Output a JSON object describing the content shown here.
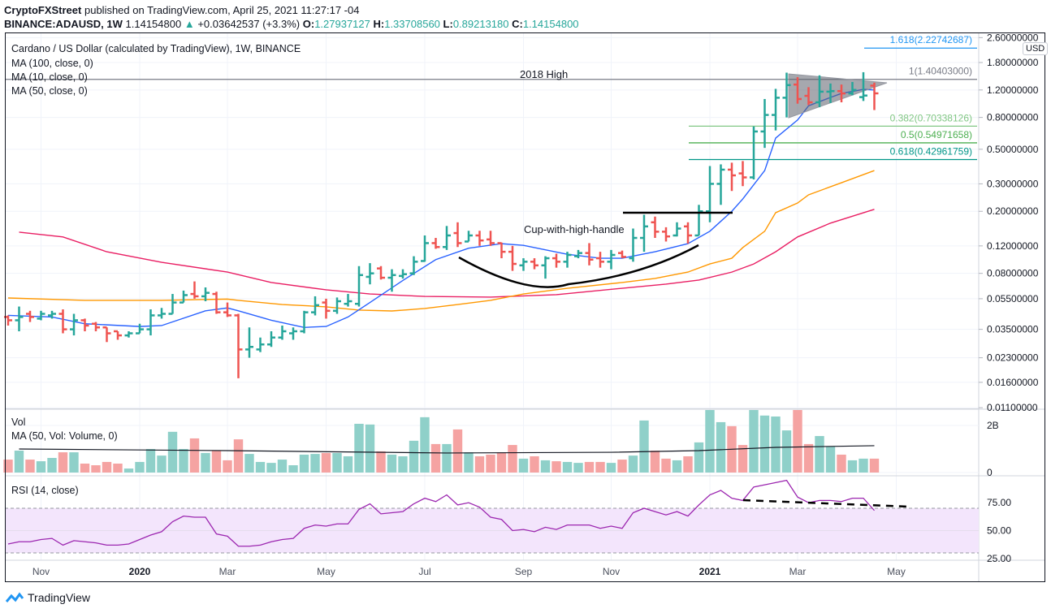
{
  "header": {
    "publisher": "CryptoFXStreet",
    "published_text": "published on TradingView.com, April 25, 2021 11:27:17 -04",
    "symbol": "BINANCE:ADAUSD, 1W",
    "last": "1.14154800",
    "change": "+0.03642537 (+3.3%)",
    "o_label": "O:",
    "o": "1.27937127",
    "h_label": "H:",
    "h": "1.33708560",
    "l_label": "L:",
    "l": "0.89213180",
    "c_label": "C:",
    "c": "1.14154800"
  },
  "legend": {
    "title": "Cardano / US Dollar (calculated by TradingView), 1W, BINANCE",
    "ma100": "MA (100, close, 0)",
    "ma10": "MA (10, close, 0)",
    "ma50": "MA (50, close, 0)",
    "vol": "Vol",
    "vol_ma": "MA (50, Vol: Volume, 0)",
    "rsi": "RSI (14, close)"
  },
  "currency": "USD",
  "annotations": {
    "high_2018": "2018 High",
    "cup": "Cup-with-high-handle"
  },
  "fib_levels": [
    {
      "label": "1.618(2.22742687)",
      "value": 2.22742687,
      "color": "#2196f3"
    },
    {
      "label": "1(1.40403000)",
      "value": 1.40403,
      "color": "#787b86"
    },
    {
      "label": "0.382(0.70338126)",
      "value": 0.70338126,
      "color": "#81c784"
    },
    {
      "label": "0.5(0.54971658)",
      "value": 0.54971658,
      "color": "#4caf50"
    },
    {
      "label": "0.618(0.42961759)",
      "value": 0.42961759,
      "color": "#009688"
    }
  ],
  "branding": "TradingView",
  "colors": {
    "up": "#26a69a",
    "down": "#ef5350",
    "ma10": "#2962ff",
    "ma50": "#ff9800",
    "ma100": "#e91e63",
    "rsi": "#9c27b0",
    "rsi_band": "#f3e5fc"
  },
  "chart_data": {
    "type": "ohlc-bar",
    "price_scale": "log",
    "grid": true,
    "price_ticks": [
      "2.60000000",
      "1.80000000",
      "1.20000000",
      "0.80000000",
      "0.50000000",
      "0.30000000",
      "0.20000000",
      "0.12000000",
      "0.08000000",
      "0.05500000",
      "0.03500000",
      "0.02300000",
      "0.01600000",
      "0.01100000"
    ],
    "time_ticks": [
      {
        "label": "Nov",
        "date": "2019-11-04"
      },
      {
        "label": "2020",
        "date": "2020-01-06",
        "year": true
      },
      {
        "label": "Mar",
        "date": "2020-03-02"
      },
      {
        "label": "May",
        "date": "2020-05-04"
      },
      {
        "label": "Jul",
        "date": "2020-07-06"
      },
      {
        "label": "Sep",
        "date": "2020-09-07"
      },
      {
        "label": "Nov",
        "date": "2020-11-02"
      },
      {
        "label": "2021",
        "date": "2021-01-04",
        "year": true
      },
      {
        "label": "Mar",
        "date": "2021-03-01"
      },
      {
        "label": "May",
        "date": "2021-05-03"
      }
    ],
    "volume_ticks": [
      "2B",
      "0"
    ],
    "rsi_ticks": [
      "75.00",
      "50.00",
      "25.00"
    ],
    "rsi_bands": [
      30,
      70
    ],
    "bars": [
      [
        "2019-10-14",
        0.042,
        0.043,
        0.037,
        0.04
      ],
      [
        "2019-10-21",
        0.04,
        0.049,
        0.034,
        0.042
      ],
      [
        "2019-10-28",
        0.044,
        0.046,
        0.039,
        0.042
      ],
      [
        "2019-11-04",
        0.041,
        0.046,
        0.04,
        0.044
      ],
      [
        "2019-11-11",
        0.043,
        0.046,
        0.041,
        0.044
      ],
      [
        "2019-11-18",
        0.044,
        0.047,
        0.033,
        0.035
      ],
      [
        "2019-11-25",
        0.035,
        0.044,
        0.032,
        0.04
      ],
      [
        "2019-12-02",
        0.04,
        0.041,
        0.034,
        0.037
      ],
      [
        "2019-12-09",
        0.038,
        0.039,
        0.034,
        0.036
      ],
      [
        "2019-12-16",
        0.036,
        0.036,
        0.029,
        0.033
      ],
      [
        "2019-12-23",
        0.034,
        0.034,
        0.03,
        0.032
      ],
      [
        "2019-12-30",
        0.032,
        0.034,
        0.031,
        0.033
      ],
      [
        "2020-01-06",
        0.033,
        0.038,
        0.033,
        0.035
      ],
      [
        "2020-01-13",
        0.035,
        0.047,
        0.032,
        0.043
      ],
      [
        "2020-01-20",
        0.043,
        0.048,
        0.041,
        0.044
      ],
      [
        "2020-01-27",
        0.044,
        0.059,
        0.044,
        0.052
      ],
      [
        "2020-02-03",
        0.052,
        0.062,
        0.052,
        0.058
      ],
      [
        "2020-02-10",
        0.059,
        0.071,
        0.055,
        0.057
      ],
      [
        "2020-02-17",
        0.057,
        0.065,
        0.053,
        0.06
      ],
      [
        "2020-02-24",
        0.059,
        0.061,
        0.044,
        0.045
      ],
      [
        "2020-03-02",
        0.045,
        0.052,
        0.042,
        0.043
      ],
      [
        "2020-03-09",
        0.043,
        0.044,
        0.017,
        0.026
      ],
      [
        "2020-03-16",
        0.026,
        0.036,
        0.023,
        0.027
      ],
      [
        "2020-03-23",
        0.026,
        0.031,
        0.025,
        0.028
      ],
      [
        "2020-03-30",
        0.028,
        0.034,
        0.027,
        0.031
      ],
      [
        "2020-04-06",
        0.031,
        0.037,
        0.03,
        0.034
      ],
      [
        "2020-04-13",
        0.033,
        0.036,
        0.03,
        0.034
      ],
      [
        "2020-04-20",
        0.034,
        0.046,
        0.033,
        0.045
      ],
      [
        "2020-04-27",
        0.045,
        0.057,
        0.043,
        0.05
      ],
      [
        "2020-05-04",
        0.052,
        0.055,
        0.041,
        0.046
      ],
      [
        "2020-05-11",
        0.046,
        0.056,
        0.044,
        0.053
      ],
      [
        "2020-05-18",
        0.051,
        0.059,
        0.049,
        0.053
      ],
      [
        "2020-05-25",
        0.051,
        0.089,
        0.049,
        0.078
      ],
      [
        "2020-06-01",
        0.076,
        0.093,
        0.068,
        0.08
      ],
      [
        "2020-06-08",
        0.086,
        0.089,
        0.073,
        0.075
      ],
      [
        "2020-06-15",
        0.075,
        0.085,
        0.061,
        0.078
      ],
      [
        "2020-06-22",
        0.077,
        0.085,
        0.074,
        0.079
      ],
      [
        "2020-06-29",
        0.08,
        0.103,
        0.078,
        0.095
      ],
      [
        "2020-07-06",
        0.096,
        0.14,
        0.095,
        0.125
      ],
      [
        "2020-07-13",
        0.125,
        0.135,
        0.115,
        0.118
      ],
      [
        "2020-07-20",
        0.118,
        0.161,
        0.113,
        0.14
      ],
      [
        "2020-07-27",
        0.145,
        0.17,
        0.118,
        0.125
      ],
      [
        "2020-08-03",
        0.128,
        0.15,
        0.128,
        0.14
      ],
      [
        "2020-08-10",
        0.14,
        0.15,
        0.12,
        0.13
      ],
      [
        "2020-08-17",
        0.132,
        0.15,
        0.12,
        0.125
      ],
      [
        "2020-08-24",
        0.125,
        0.126,
        0.1,
        0.11
      ],
      [
        "2020-08-31",
        0.11,
        0.12,
        0.083,
        0.092
      ],
      [
        "2020-09-07",
        0.09,
        0.1,
        0.083,
        0.095
      ],
      [
        "2020-09-14",
        0.095,
        0.1,
        0.085,
        0.09
      ],
      [
        "2020-09-21",
        0.09,
        0.103,
        0.074,
        0.1
      ],
      [
        "2020-09-28",
        0.1,
        0.107,
        0.087,
        0.095
      ],
      [
        "2020-10-05",
        0.095,
        0.11,
        0.087,
        0.105
      ],
      [
        "2020-10-12",
        0.103,
        0.113,
        0.1,
        0.108
      ],
      [
        "2020-10-19",
        0.108,
        0.125,
        0.09,
        0.098
      ],
      [
        "2020-10-26",
        0.1,
        0.11,
        0.087,
        0.095
      ],
      [
        "2020-11-02",
        0.095,
        0.113,
        0.085,
        0.105
      ],
      [
        "2020-11-09",
        0.108,
        0.112,
        0.1,
        0.102
      ],
      [
        "2020-11-16",
        0.1,
        0.155,
        0.095,
        0.135
      ],
      [
        "2020-11-23",
        0.135,
        0.19,
        0.11,
        0.16
      ],
      [
        "2020-11-30",
        0.17,
        0.185,
        0.135,
        0.148
      ],
      [
        "2020-12-07",
        0.148,
        0.158,
        0.128,
        0.138
      ],
      [
        "2020-12-14",
        0.14,
        0.17,
        0.138,
        0.155
      ],
      [
        "2020-12-21",
        0.16,
        0.17,
        0.124,
        0.14
      ],
      [
        "2020-12-28",
        0.14,
        0.22,
        0.14,
        0.2
      ],
      [
        "2021-01-04",
        0.2,
        0.39,
        0.17,
        0.3
      ],
      [
        "2021-01-11",
        0.3,
        0.4,
        0.22,
        0.37
      ],
      [
        "2021-01-18",
        0.37,
        0.41,
        0.27,
        0.34
      ],
      [
        "2021-01-25",
        0.35,
        0.42,
        0.29,
        0.33
      ],
      [
        "2021-02-01",
        0.33,
        0.7,
        0.32,
        0.65
      ],
      [
        "2021-02-08",
        0.65,
        1.05,
        0.51,
        0.83
      ],
      [
        "2021-02-15",
        0.83,
        1.22,
        0.66,
        1.07
      ],
      [
        "2021-02-22",
        1.07,
        1.55,
        0.8,
        1.29
      ],
      [
        "2021-03-01",
        1.3,
        1.45,
        0.98,
        1.05
      ],
      [
        "2021-03-08",
        1.1,
        1.25,
        0.96,
        1.0
      ],
      [
        "2021-03-15",
        1.0,
        1.49,
        0.93,
        1.17
      ],
      [
        "2021-03-22",
        1.17,
        1.32,
        0.99,
        1.18
      ],
      [
        "2021-03-29",
        1.18,
        1.3,
        1.0,
        1.14
      ],
      [
        "2021-04-05",
        1.14,
        1.35,
        1.11,
        1.2
      ],
      [
        "2021-04-12",
        1.08,
        1.56,
        1.02,
        1.105
      ],
      [
        "2021-04-19",
        1.27937127,
        1.3370856,
        0.8921318,
        1.141548
      ]
    ],
    "volume_billions": [
      0.55,
      0.93,
      0.55,
      0.48,
      0.62,
      0.86,
      0.86,
      0.38,
      0.31,
      0.45,
      0.38,
      0.17,
      0.45,
      1.0,
      0.72,
      1.73,
      1.0,
      1.45,
      0.83,
      0.93,
      0.52,
      1.41,
      0.79,
      0.45,
      0.41,
      0.55,
      0.31,
      0.76,
      0.79,
      0.83,
      0.83,
      0.69,
      2.07,
      2.04,
      0.9,
      0.76,
      0.69,
      1.35,
      2.35,
      1.21,
      1.21,
      1.83,
      0.86,
      0.69,
      0.76,
      0.86,
      1.17,
      0.59,
      0.69,
      0.52,
      0.48,
      0.45,
      0.41,
      0.45,
      0.45,
      0.41,
      0.55,
      0.72,
      2.21,
      0.93,
      0.59,
      0.52,
      0.69,
      1.28,
      2.66,
      2.14,
      1.97,
      1.17,
      2.66,
      2.42,
      2.38,
      1.79,
      2.66,
      1.21,
      1.55,
      1.1,
      0.76,
      0.52,
      0.59,
      0.59
    ],
    "volume_ma50": [
      [
        "2019-10-21",
        1.0
      ],
      [
        "2020-03-02",
        0.93
      ],
      [
        "2020-07-20",
        0.83
      ],
      [
        "2020-11-02",
        0.86
      ],
      [
        "2020-12-28",
        0.93
      ],
      [
        "2021-02-15",
        1.07
      ],
      [
        "2021-04-19",
        1.14
      ]
    ],
    "rsi": [
      38,
      40,
      40,
      42,
      43,
      37,
      41,
      40,
      39,
      37,
      37,
      38,
      42,
      46,
      49,
      58,
      63,
      62,
      62,
      47,
      45,
      36,
      36,
      37,
      40,
      42,
      43,
      52,
      55,
      54,
      56,
      56,
      69,
      74,
      65,
      66,
      67,
      74,
      79,
      76,
      82,
      73,
      75,
      71,
      62,
      60,
      50,
      51,
      49,
      53,
      51,
      55,
      55,
      55,
      52,
      54,
      52,
      66,
      70,
      67,
      64,
      67,
      63,
      73,
      82,
      86,
      79,
      77,
      89,
      91,
      93,
      95,
      80,
      75,
      77,
      77,
      76,
      79,
      79,
      68
    ],
    "ma10": [
      [
        "2019-10-14",
        0.043
      ],
      [
        "2019-11-11",
        0.042
      ],
      [
        "2019-12-02",
        0.038
      ],
      [
        "2020-01-06",
        0.0365
      ],
      [
        "2020-01-20",
        0.037
      ],
      [
        "2020-02-17",
        0.046
      ],
      [
        "2020-03-02",
        0.048
      ],
      [
        "2020-03-09",
        0.046
      ],
      [
        "2020-03-30",
        0.04
      ],
      [
        "2020-04-20",
        0.036
      ],
      [
        "2020-05-04",
        0.0365
      ],
      [
        "2020-05-18",
        0.042
      ],
      [
        "2020-06-01",
        0.052
      ],
      [
        "2020-06-22",
        0.072
      ],
      [
        "2020-07-13",
        0.098
      ],
      [
        "2020-08-03",
        0.116
      ],
      [
        "2020-08-24",
        0.124
      ],
      [
        "2020-09-07",
        0.121
      ],
      [
        "2020-10-05",
        0.106
      ],
      [
        "2020-10-26",
        0.1
      ],
      [
        "2020-11-09",
        0.1
      ],
      [
        "2020-11-30",
        0.11
      ],
      [
        "2020-12-21",
        0.124
      ],
      [
        "2021-01-04",
        0.149
      ],
      [
        "2021-01-18",
        0.2
      ],
      [
        "2021-01-25",
        0.24
      ],
      [
        "2021-02-08",
        0.365
      ],
      [
        "2021-02-15",
        0.59
      ],
      [
        "2021-03-01",
        0.77
      ],
      [
        "2021-03-08",
        0.95
      ],
      [
        "2021-03-22",
        1.075
      ],
      [
        "2021-03-29",
        1.14
      ],
      [
        "2021-04-12",
        1.21
      ],
      [
        "2021-04-19",
        1.2
      ]
    ],
    "ma50": [
      [
        "2019-10-14",
        0.0556
      ],
      [
        "2019-12-02",
        0.0537
      ],
      [
        "2020-01-20",
        0.0537
      ],
      [
        "2020-03-02",
        0.0547
      ],
      [
        "2020-03-09",
        0.0537
      ],
      [
        "2020-04-06",
        0.0505
      ],
      [
        "2020-05-04",
        0.0488
      ],
      [
        "2020-05-25",
        0.0465
      ],
      [
        "2020-06-15",
        0.0459
      ],
      [
        "2020-07-06",
        0.0476
      ],
      [
        "2020-07-27",
        0.0505
      ],
      [
        "2020-08-17",
        0.0537
      ],
      [
        "2020-09-07",
        0.059
      ],
      [
        "2020-10-05",
        0.0642
      ],
      [
        "2020-11-09",
        0.0699
      ],
      [
        "2020-11-30",
        0.0742
      ],
      [
        "2020-12-21",
        0.0815
      ],
      [
        "2021-01-04",
        0.0919
      ],
      [
        "2021-01-18",
        0.1
      ],
      [
        "2021-01-25",
        0.117
      ],
      [
        "2021-02-08",
        0.149
      ],
      [
        "2021-02-15",
        0.196
      ],
      [
        "2021-03-01",
        0.226
      ],
      [
        "2021-03-08",
        0.255
      ],
      [
        "2021-03-29",
        0.305
      ],
      [
        "2021-04-19",
        0.365
      ]
    ],
    "ma100": [
      [
        "2019-10-21",
        0.147
      ],
      [
        "2019-11-18",
        0.137
      ],
      [
        "2019-12-16",
        0.11
      ],
      [
        "2020-01-20",
        0.0942
      ],
      [
        "2020-03-02",
        0.0815
      ],
      [
        "2020-03-30",
        0.0699
      ],
      [
        "2020-05-04",
        0.0627
      ],
      [
        "2020-06-01",
        0.059
      ],
      [
        "2020-07-06",
        0.0569
      ],
      [
        "2020-08-17",
        0.0563
      ],
      [
        "2020-09-28",
        0.0584
      ],
      [
        "2020-11-09",
        0.0642
      ],
      [
        "2020-12-07",
        0.0682
      ],
      [
        "2020-12-28",
        0.0724
      ],
      [
        "2021-01-18",
        0.0815
      ],
      [
        "2021-02-01",
        0.0919
      ],
      [
        "2021-02-15",
        0.11
      ],
      [
        "2021-03-01",
        0.137
      ],
      [
        "2021-03-22",
        0.168
      ],
      [
        "2021-04-19",
        0.206
      ]
    ]
  }
}
